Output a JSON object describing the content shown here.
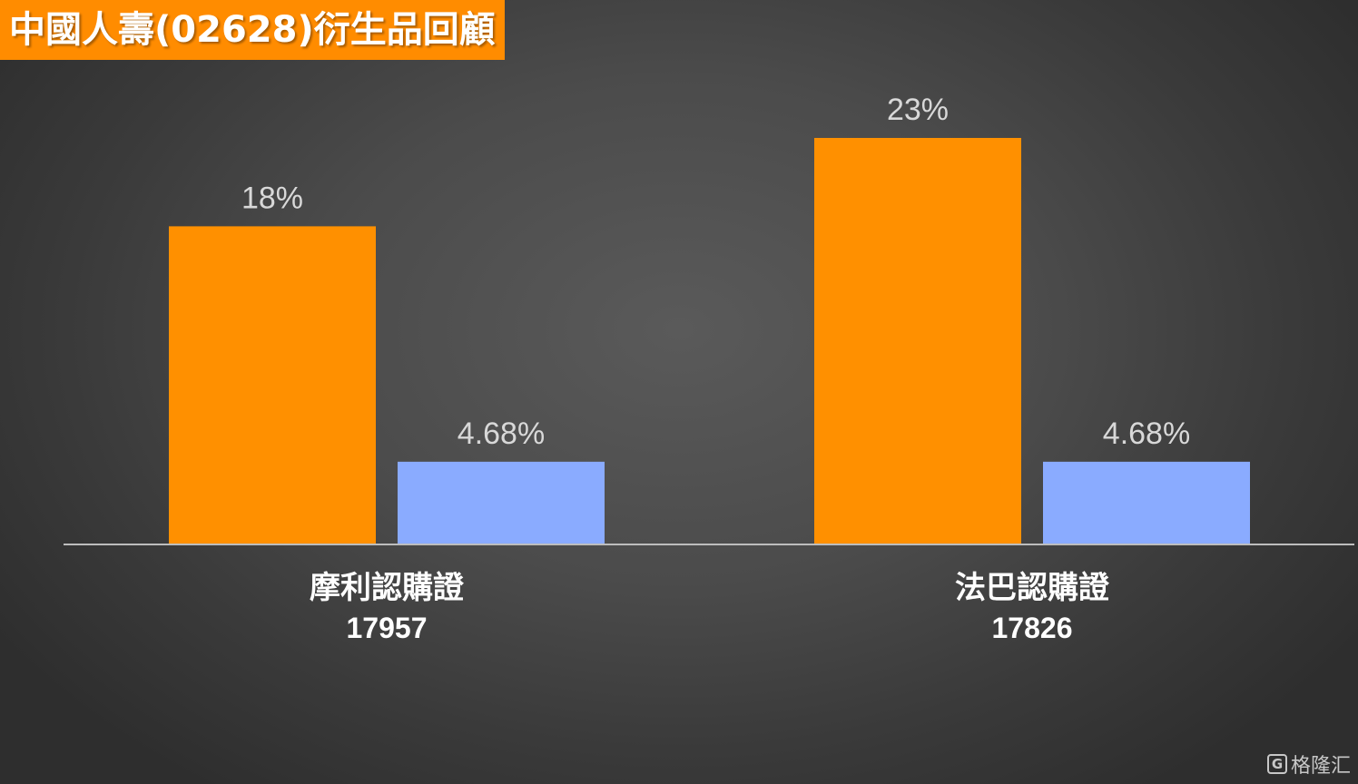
{
  "title": "中國人壽(02628)衍生品回顧",
  "colors": {
    "title_bg": "#FF8C00",
    "series_a": "#FF9000",
    "series_b": "#8AABFF",
    "label": "#D8D8D8",
    "axis_text": "#FFFFFF",
    "axis_line": "#BDBDBD"
  },
  "chart_data": {
    "type": "bar",
    "title": "中國人壽(02628)衍生品回顧",
    "categories": [
      {
        "name": "摩利認購證",
        "code": "17957"
      },
      {
        "name": "法巴認購證",
        "code": "17826"
      }
    ],
    "series": [
      {
        "values": [
          18,
          23
        ],
        "labels": [
          "18%",
          "23%"
        ],
        "color": "#FF9000"
      },
      {
        "values": [
          4.68,
          4.68
        ],
        "labels": [
          "4.68%",
          "4.68%"
        ],
        "color": "#8AABFF"
      }
    ],
    "ylim": [
      0,
      28
    ],
    "grid": false,
    "legend": "none"
  },
  "watermark": {
    "logo": "G",
    "text": "格隆汇"
  }
}
